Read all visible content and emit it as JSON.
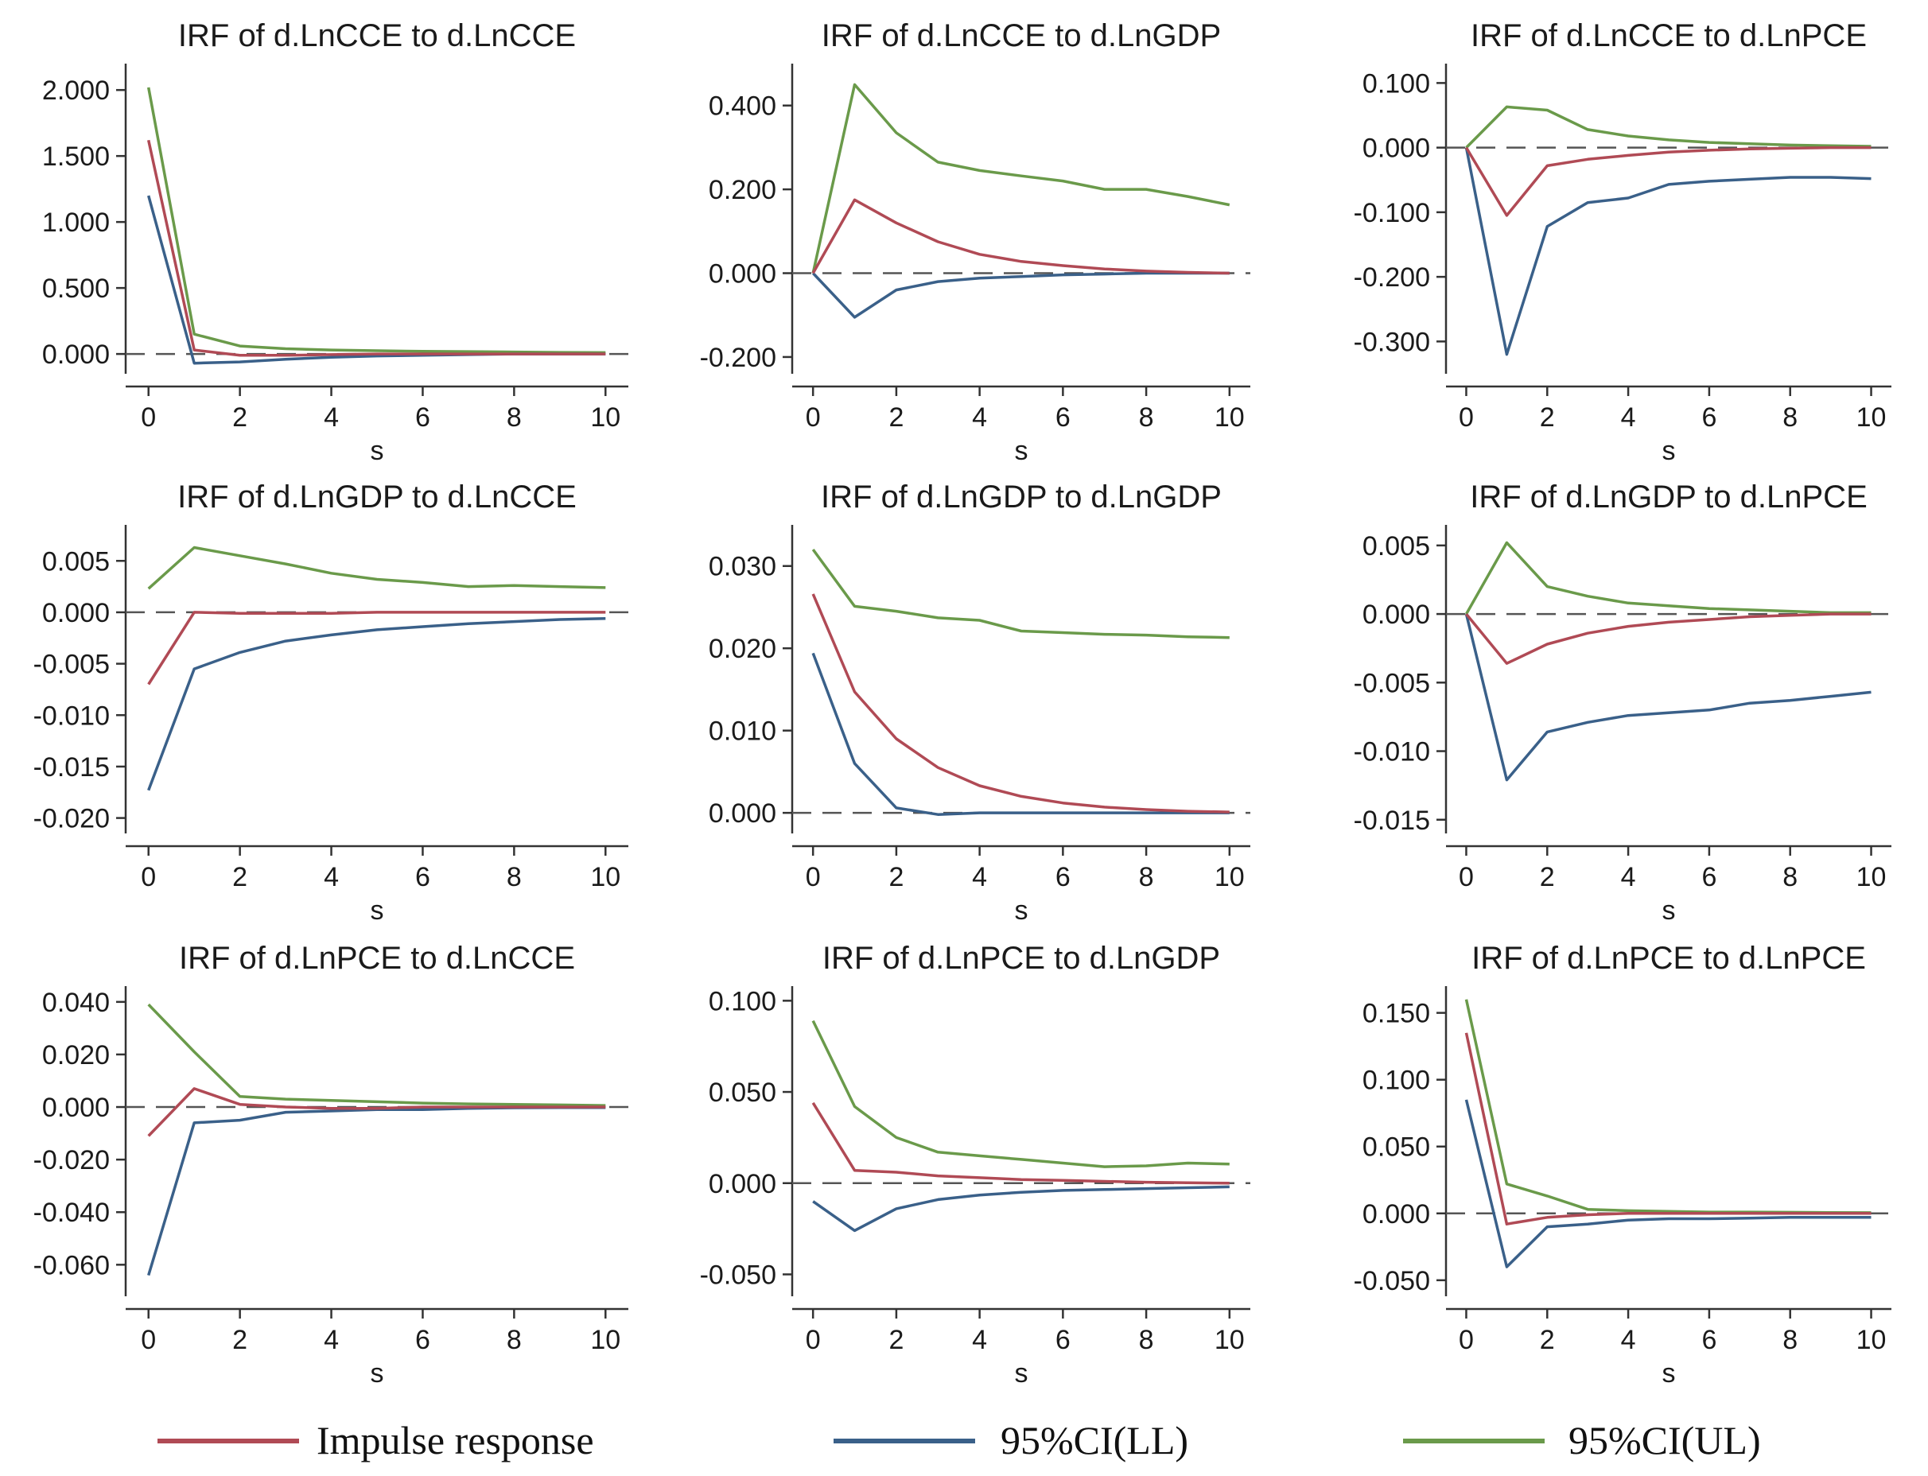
{
  "chart_data": {
    "type": "line",
    "x_label": "s",
    "x_ticks": [
      0,
      2,
      4,
      6,
      8,
      10
    ],
    "series_colors": {
      "impulse": "#b04a55",
      "ll": "#3a6089",
      "ul": "#6a9a4a"
    },
    "legend": [
      {
        "key": "impulse",
        "label": "Impulse response"
      },
      {
        "key": "ll",
        "label": "95%CI(LL)"
      },
      {
        "key": "ul",
        "label": "95%CI(UL)"
      }
    ],
    "panels": [
      {
        "title": "IRF of d.LnCCE to d.LnCCE",
        "ylim": [
          -0.15,
          2.2
        ],
        "y_ticks": [
          0,
          0.5,
          1,
          1.5,
          2
        ],
        "y_tick_labels": [
          "0.000",
          "0.500",
          "1.000",
          "1.500",
          "2.000"
        ],
        "x": [
          0,
          1,
          2,
          3,
          4,
          5,
          6,
          7,
          8,
          9,
          10
        ],
        "impulse": [
          1.62,
          0.03,
          -0.01,
          -0.01,
          -0.005,
          0,
          0,
          0,
          0,
          0,
          0
        ],
        "ll": [
          1.2,
          -0.07,
          -0.06,
          -0.04,
          -0.025,
          -0.015,
          -0.01,
          -0.005,
          0,
          0,
          0
        ],
        "ul": [
          2.02,
          0.15,
          0.06,
          0.04,
          0.03,
          0.025,
          0.02,
          0.018,
          0.015,
          0.012,
          0.01
        ]
      },
      {
        "title": "IRF of d.LnCCE to d.LnGDP",
        "ylim": [
          -0.24,
          0.5
        ],
        "y_ticks": [
          -0.2,
          0,
          0.2,
          0.4
        ],
        "y_tick_labels": [
          "-0.200",
          "0.000",
          "0.200",
          "0.400"
        ],
        "x": [
          0,
          1,
          2,
          3,
          4,
          5,
          6,
          7,
          8,
          9,
          10
        ],
        "impulse": [
          0,
          0.175,
          0.12,
          0.075,
          0.045,
          0.028,
          0.018,
          0.01,
          0.005,
          0.002,
          0
        ],
        "ll": [
          0,
          -0.105,
          -0.04,
          -0.02,
          -0.012,
          -0.008,
          -0.004,
          -0.002,
          0,
          0,
          0
        ],
        "ul": [
          0,
          0.45,
          0.335,
          0.265,
          0.245,
          0.232,
          0.22,
          0.2,
          0.2,
          0.183,
          0.163
        ]
      },
      {
        "title": "IRF of d.LnCCE to d.LnPCE",
        "ylim": [
          -0.35,
          0.13
        ],
        "y_ticks": [
          -0.3,
          -0.2,
          -0.1,
          0,
          0.1
        ],
        "y_tick_labels": [
          "-0.300",
          "-0.200",
          "-0.100",
          "0.000",
          "0.100"
        ],
        "x": [
          0,
          1,
          2,
          3,
          4,
          5,
          6,
          7,
          8,
          9,
          10
        ],
        "impulse": [
          0,
          -0.105,
          -0.028,
          -0.018,
          -0.012,
          -0.007,
          -0.004,
          -0.002,
          -0.001,
          0,
          0
        ],
        "ll": [
          0,
          -0.32,
          -0.122,
          -0.085,
          -0.078,
          -0.057,
          -0.052,
          -0.049,
          -0.046,
          -0.046,
          -0.048
        ],
        "ul": [
          0,
          0.063,
          0.058,
          0.028,
          0.018,
          0.012,
          0.008,
          0.006,
          0.004,
          0.003,
          0.002
        ]
      },
      {
        "title": "IRF of d.LnGDP to d.LnCCE",
        "ylim": [
          -0.0215,
          0.0085
        ],
        "y_ticks": [
          -0.02,
          -0.015,
          -0.01,
          -0.005,
          0,
          0.005
        ],
        "y_tick_labels": [
          "-0.020",
          "-0.015",
          "-0.010",
          "-0.005",
          "0.000",
          "0.005"
        ],
        "x": [
          0,
          1,
          2,
          3,
          4,
          5,
          6,
          7,
          8,
          9,
          10
        ],
        "impulse": [
          -0.007,
          0,
          -0.0001,
          -0.0001,
          -0.0001,
          0,
          0,
          0,
          0,
          0,
          0
        ],
        "ll": [
          -0.0173,
          -0.0055,
          -0.0039,
          -0.0028,
          -0.0022,
          -0.0017,
          -0.0014,
          -0.0011,
          -0.0009,
          -0.0007,
          -0.0006
        ],
        "ul": [
          0.0023,
          0.0063,
          0.0055,
          0.0047,
          0.0038,
          0.0032,
          0.0029,
          0.0025,
          0.0026,
          0.0025,
          0.0024
        ]
      },
      {
        "title": "IRF of d.LnGDP to d.LnGDP",
        "ylim": [
          -0.0025,
          0.035
        ],
        "y_ticks": [
          0,
          0.01,
          0.02,
          0.03
        ],
        "y_tick_labels": [
          "0.000",
          "0.010",
          "0.020",
          "0.030"
        ],
        "x": [
          0,
          1,
          2,
          3,
          4,
          5,
          6,
          7,
          8,
          9,
          10
        ],
        "impulse": [
          0.0266,
          0.0147,
          0.009,
          0.0055,
          0.0033,
          0.002,
          0.0012,
          0.0007,
          0.0004,
          0.0002,
          0.0001
        ],
        "ll": [
          0.0194,
          0.006,
          0.0006,
          -0.0002,
          0,
          0,
          0,
          0,
          0,
          0,
          0
        ],
        "ul": [
          0.032,
          0.0251,
          0.0245,
          0.0237,
          0.0234,
          0.0221,
          0.0219,
          0.0217,
          0.0216,
          0.0214,
          0.0213
        ]
      },
      {
        "title": "IRF of d.LnGDP to d.LnPCE",
        "ylim": [
          -0.016,
          0.0065
        ],
        "y_ticks": [
          -0.015,
          -0.01,
          -0.005,
          0,
          0.005
        ],
        "y_tick_labels": [
          "-0.015",
          "-0.010",
          "-0.005",
          "0.000",
          "0.005"
        ],
        "x": [
          0,
          1,
          2,
          3,
          4,
          5,
          6,
          7,
          8,
          9,
          10
        ],
        "impulse": [
          0,
          -0.0036,
          -0.0022,
          -0.0014,
          -0.0009,
          -0.0006,
          -0.0004,
          -0.0002,
          -0.0001,
          0,
          0
        ],
        "ll": [
          0,
          -0.0121,
          -0.0086,
          -0.0079,
          -0.0074,
          -0.0072,
          -0.007,
          -0.0065,
          -0.0063,
          -0.006,
          -0.0057
        ],
        "ul": [
          0,
          0.0052,
          0.002,
          0.0013,
          0.0008,
          0.0006,
          0.0004,
          0.0003,
          0.0002,
          0.0001,
          0.0001
        ]
      },
      {
        "title": "IRF of d.LnPCE to d.LnCCE",
        "ylim": [
          -0.072,
          0.046
        ],
        "y_ticks": [
          -0.06,
          -0.04,
          -0.02,
          0,
          0.02,
          0.04
        ],
        "y_tick_labels": [
          "-0.060",
          "-0.040",
          "-0.020",
          "0.000",
          "0.020",
          "0.040"
        ],
        "x": [
          0,
          1,
          2,
          3,
          4,
          5,
          6,
          7,
          8,
          9,
          10
        ],
        "impulse": [
          -0.011,
          0.007,
          0.001,
          0,
          -0.0005,
          -0.0005,
          0,
          0,
          0,
          0,
          0
        ],
        "ll": [
          -0.064,
          -0.006,
          -0.005,
          -0.002,
          -0.0015,
          -0.001,
          -0.001,
          -0.0005,
          -0.0003,
          -0.0002,
          -0.0002
        ],
        "ul": [
          0.039,
          0.021,
          0.004,
          0.003,
          0.0025,
          0.002,
          0.0015,
          0.0012,
          0.001,
          0.0008,
          0.0006
        ]
      },
      {
        "title": "IRF of d.LnPCE to d.LnGDP",
        "ylim": [
          -0.062,
          0.108
        ],
        "y_ticks": [
          -0.05,
          0,
          0.05,
          0.1
        ],
        "y_tick_labels": [
          "-0.050",
          "0.000",
          "0.050",
          "0.100"
        ],
        "x": [
          0,
          1,
          2,
          3,
          4,
          5,
          6,
          7,
          8,
          9,
          10
        ],
        "impulse": [
          0.044,
          0.007,
          0.006,
          0.004,
          0.003,
          0.002,
          0.0015,
          0.001,
          0.0005,
          0.0002,
          0
        ],
        "ll": [
          -0.01,
          -0.026,
          -0.014,
          -0.009,
          -0.0065,
          -0.005,
          -0.004,
          -0.0035,
          -0.003,
          -0.0025,
          -0.002
        ],
        "ul": [
          0.089,
          0.042,
          0.025,
          0.017,
          0.015,
          0.013,
          0.011,
          0.009,
          0.0095,
          0.011,
          0.0105
        ]
      },
      {
        "title": "IRF of d.LnPCE to d.LnPCE",
        "ylim": [
          -0.062,
          0.17
        ],
        "y_ticks": [
          -0.05,
          0,
          0.05,
          0.1,
          0.15
        ],
        "y_tick_labels": [
          "-0.050",
          "0.000",
          "0.050",
          "0.100",
          "0.150"
        ],
        "x": [
          0,
          1,
          2,
          3,
          4,
          5,
          6,
          7,
          8,
          9,
          10
        ],
        "impulse": [
          0.135,
          -0.008,
          -0.003,
          -0.001,
          0,
          0,
          0,
          0,
          0,
          0,
          0
        ],
        "ll": [
          0.085,
          -0.04,
          -0.01,
          -0.008,
          -0.005,
          -0.004,
          -0.004,
          -0.0035,
          -0.003,
          -0.003,
          -0.003
        ],
        "ul": [
          0.16,
          0.022,
          0.013,
          0.003,
          0.002,
          0.0015,
          0.001,
          0.001,
          0.0008,
          0.0006,
          0.0005
        ]
      }
    ]
  }
}
